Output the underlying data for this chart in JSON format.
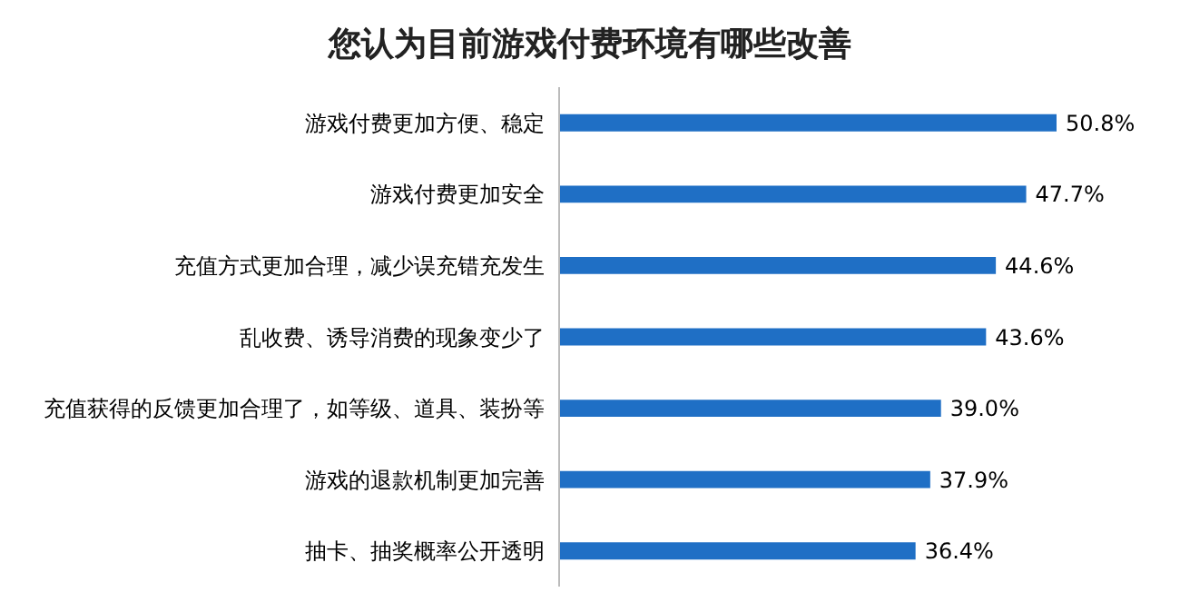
{
  "chart_data": {
    "type": "bar",
    "orientation": "horizontal",
    "title": "您认为目前游戏付费环境有哪些改善",
    "categories": [
      "游戏付费更加方便、稳定",
      "游戏付费更加安全",
      "充值方式更加合理，减少误充错充发生",
      "乱收费、诱导消费的现象变少了",
      "充值获得的反馈更加合理了，如等级、道具、装扮等",
      "游戏的退款机制更加完善",
      "抽卡、抽奖概率公开透明"
    ],
    "values": [
      50.8,
      47.7,
      44.6,
      43.6,
      39.0,
      37.9,
      36.4
    ],
    "value_labels": [
      "50.8%",
      "47.7%",
      "44.6%",
      "43.6%",
      "39.0%",
      "37.9%",
      "36.4%"
    ],
    "color": "#1f6fc5"
  }
}
